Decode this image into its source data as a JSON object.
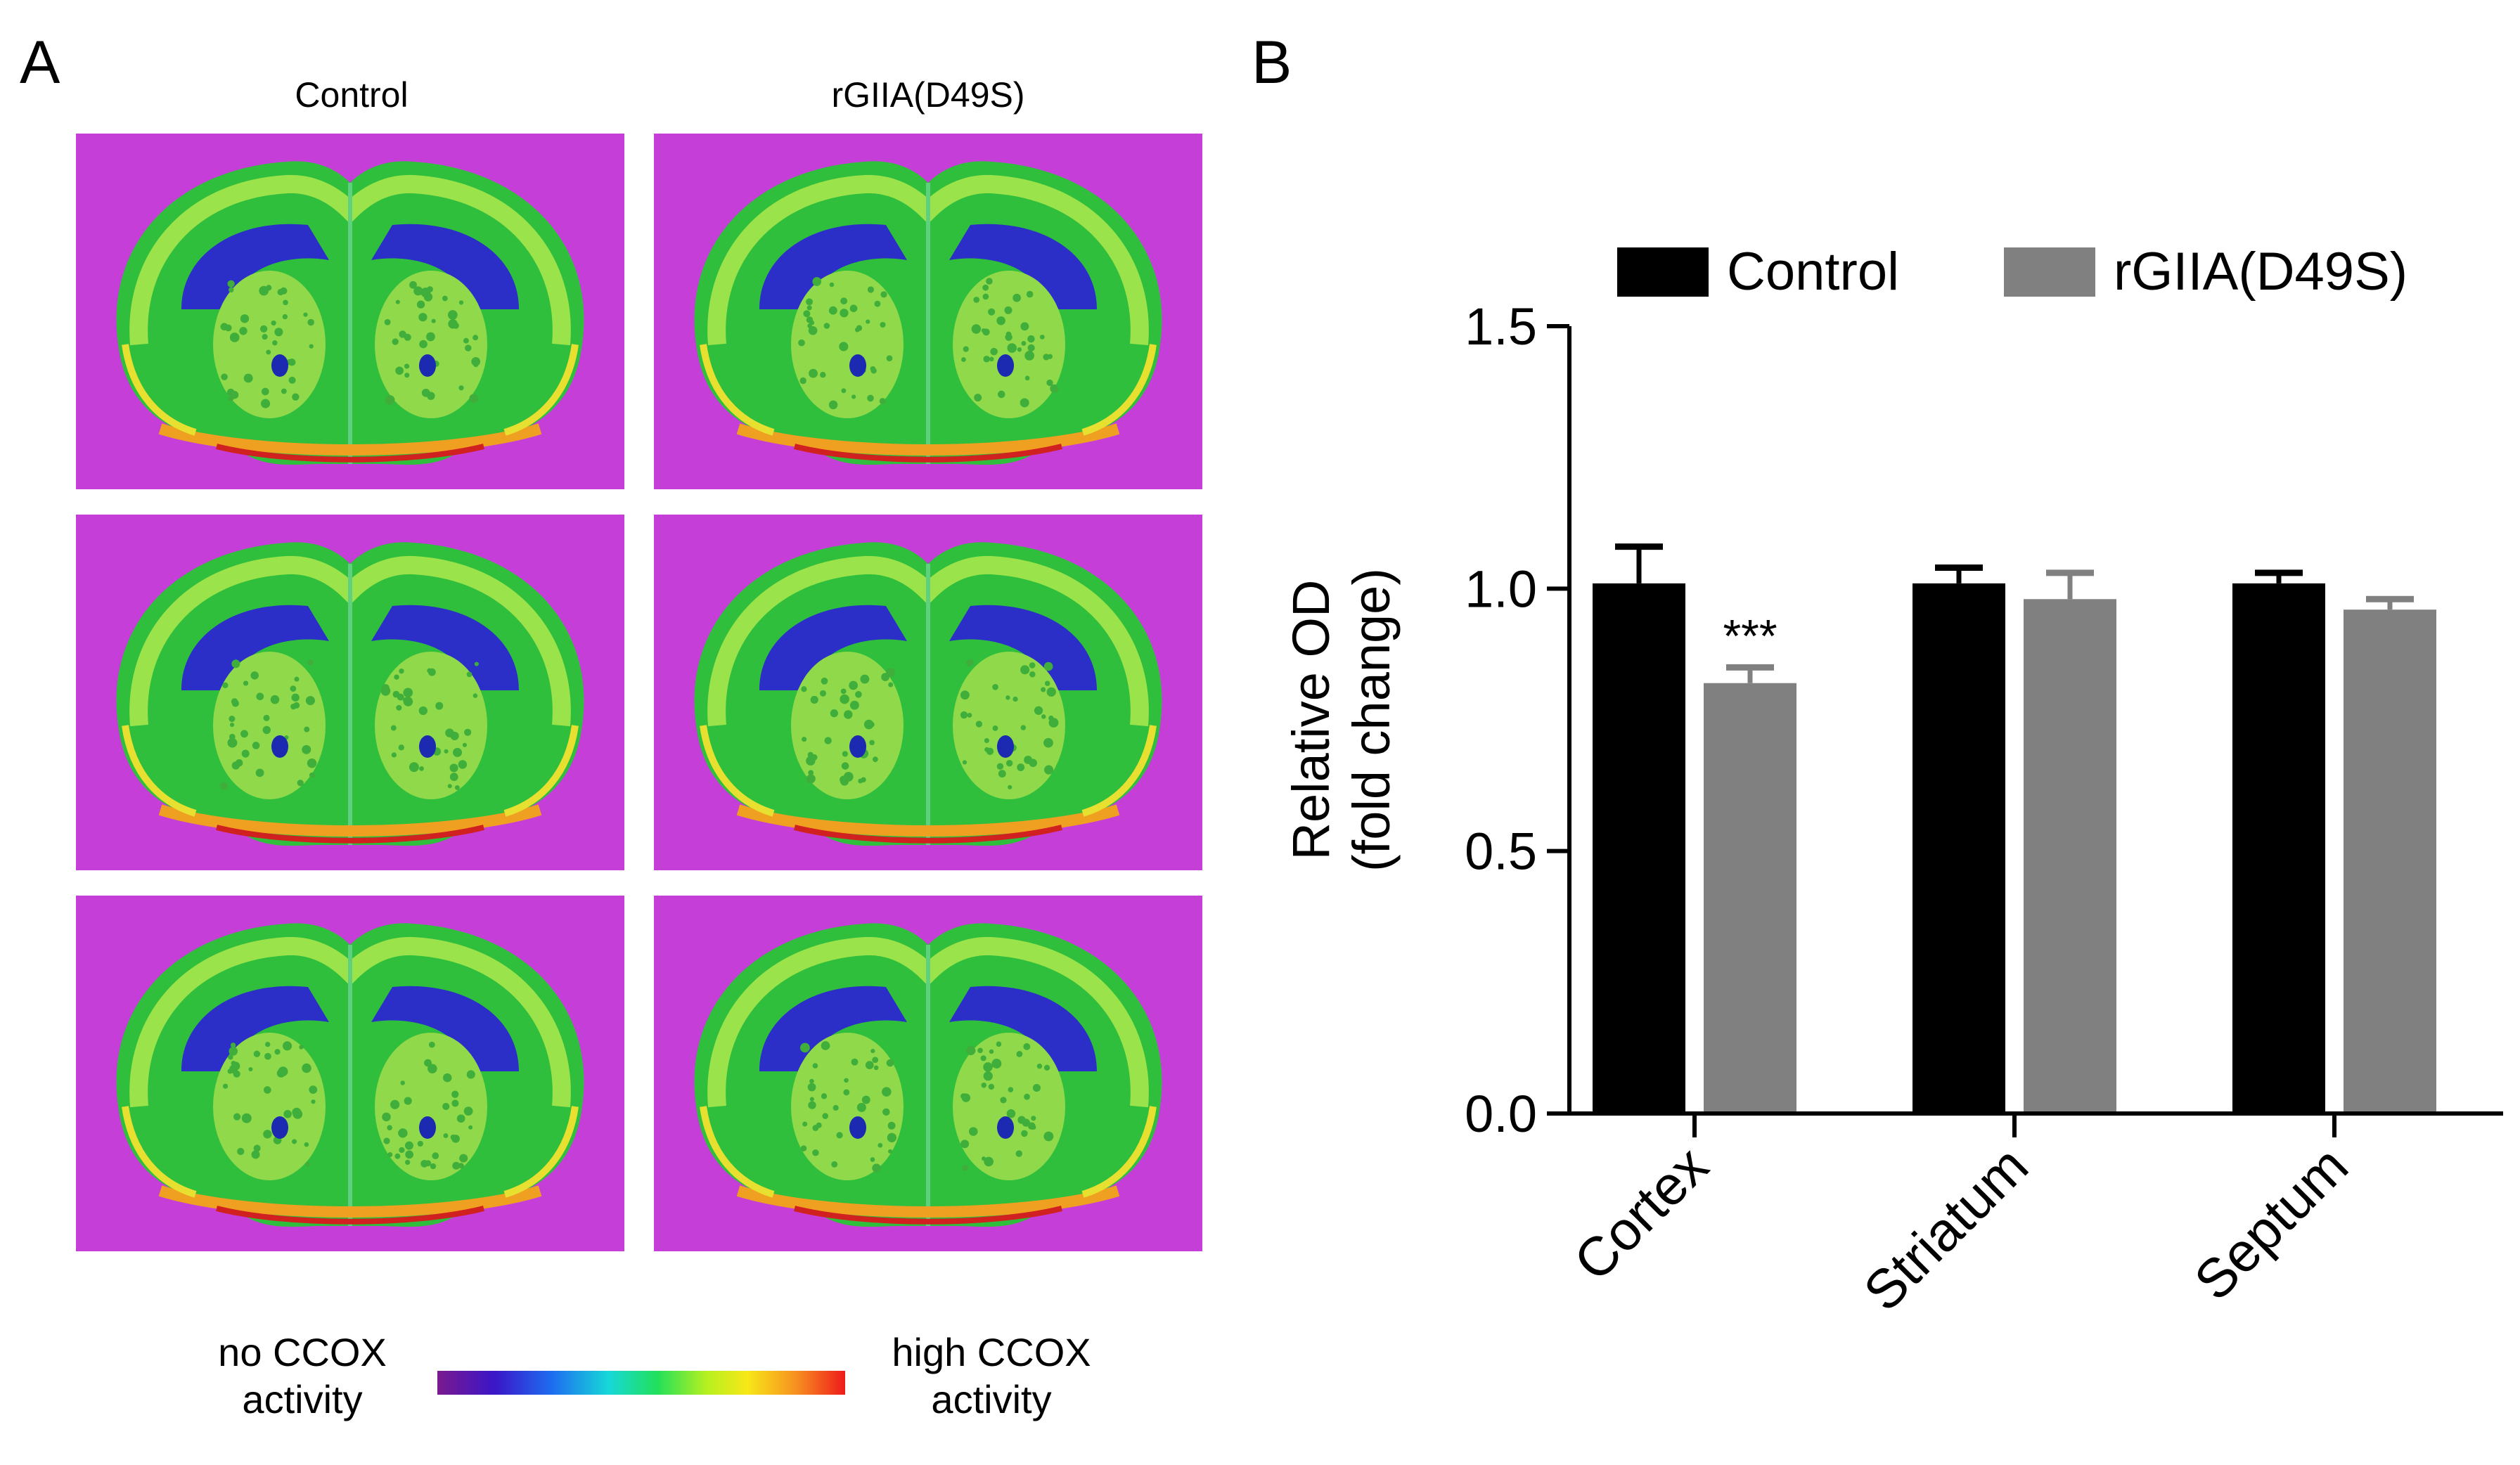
{
  "panel_a": {
    "letter": "A",
    "columns": [
      "Control",
      "rGIIA(D49S)"
    ],
    "colorbar": {
      "left_label_line1": "no CCOX",
      "left_label_line2": "activity",
      "right_label_line1": "high CCOX",
      "right_label_line2": "activity"
    }
  },
  "panel_b": {
    "letter": "B"
  },
  "colors": {
    "control": "#000000",
    "treated": "#808080",
    "background_magenta": "#c53ed8"
  },
  "chart_data": {
    "type": "bar",
    "categories": [
      "Cortex",
      "Striatum",
      "Septum"
    ],
    "series": [
      {
        "name": "Control",
        "values": [
          1.01,
          1.01,
          1.01
        ],
        "errors": [
          0.07,
          0.03,
          0.02
        ]
      },
      {
        "name": "rGIIA(D49S)",
        "values": [
          0.82,
          0.98,
          0.96
        ],
        "errors": [
          0.03,
          0.05,
          0.02
        ]
      }
    ],
    "annotations": [
      {
        "category": "Cortex",
        "series": "rGIIA(D49S)",
        "text": "***"
      }
    ],
    "ylabel_line1": "Relative OD",
    "ylabel_line2": "(fold change)",
    "ylim": [
      0,
      1.5
    ],
    "yticks": [
      "0.0",
      "0.5",
      "1.0",
      "1.5"
    ],
    "legend_position": "top",
    "grid": false
  }
}
